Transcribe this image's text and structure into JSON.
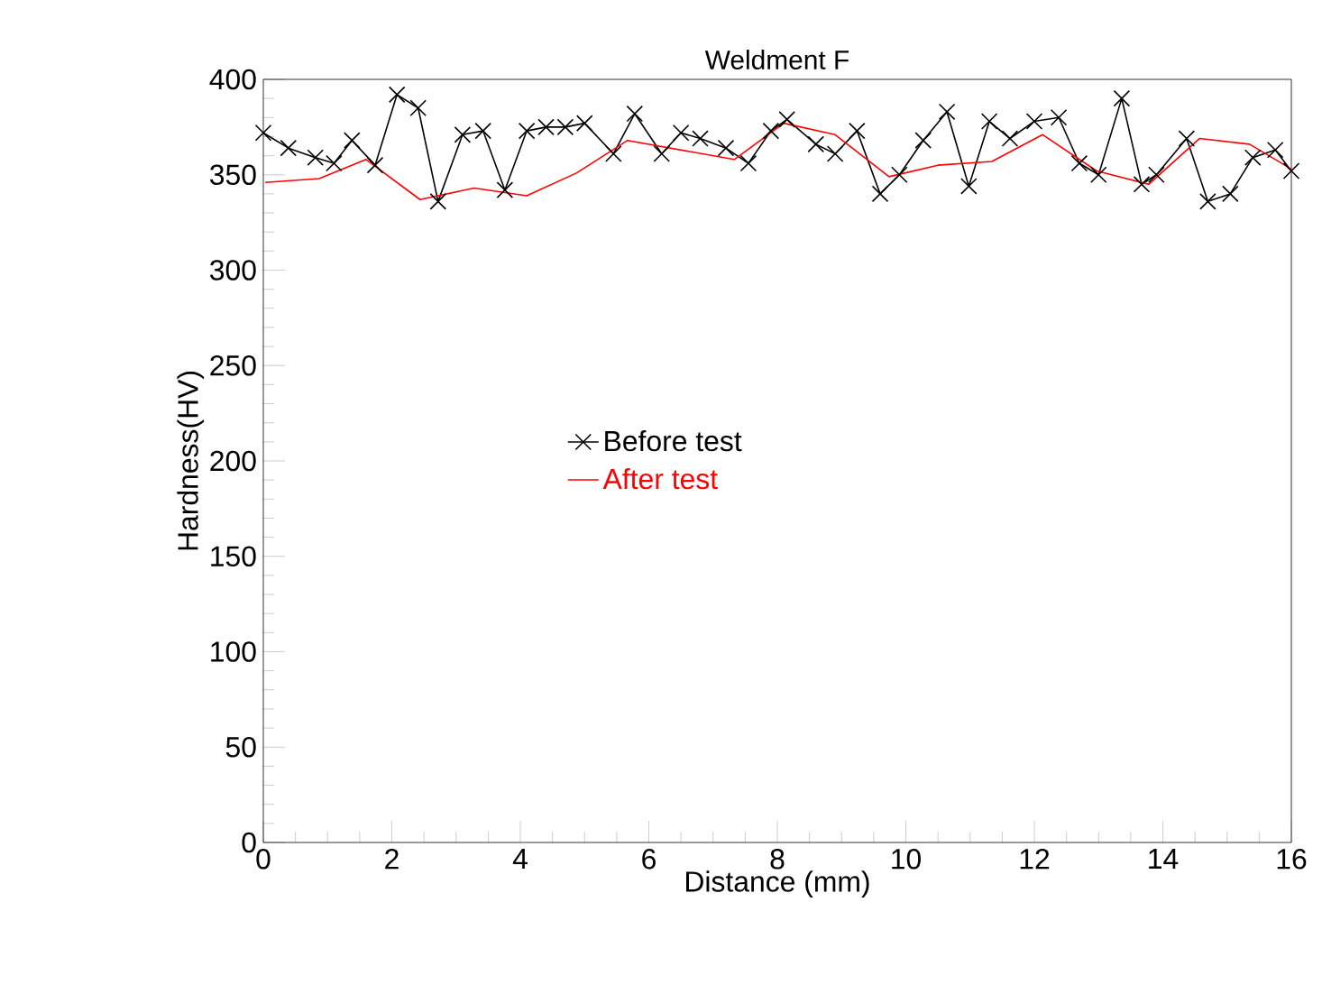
{
  "chart_data": {
    "type": "line",
    "title": "Weldment F",
    "xlabel": "Distance (mm)",
    "ylabel": "Hardness(HV)",
    "xlim": [
      0,
      16
    ],
    "xticks": [
      0,
      2,
      4,
      6,
      8,
      10,
      12,
      14,
      16
    ],
    "ylim": [
      0,
      400
    ],
    "yticks": [
      0,
      50,
      100,
      150,
      200,
      250,
      300,
      350,
      400
    ],
    "grid": false,
    "legend": "center",
    "series": [
      {
        "name": "Before test",
        "color": "#000000",
        "marker": "cross",
        "x": [
          0,
          0.39,
          0.81,
          1.1,
          1.38,
          1.74,
          2.08,
          2.41,
          2.72,
          3.1,
          3.42,
          3.76,
          4.1,
          4.4,
          4.7,
          5.0,
          5.45,
          5.78,
          6.2,
          6.5,
          6.8,
          7.2,
          7.55,
          7.9,
          8.15,
          8.6,
          8.9,
          9.24,
          9.6,
          9.9,
          10.27,
          10.64,
          10.98,
          11.3,
          11.62,
          12.0,
          12.38,
          12.7,
          13.0,
          13.36,
          13.67,
          13.9,
          14.37,
          14.7,
          15.05,
          15.4,
          15.75,
          16.0
        ],
        "values": [
          372,
          364,
          359,
          356,
          368,
          355,
          392,
          385,
          336,
          371,
          373,
          342,
          373,
          375,
          375,
          377,
          361,
          382,
          361,
          372,
          369,
          364,
          356,
          373,
          379,
          366,
          361,
          373,
          340,
          350,
          368,
          383,
          344,
          378,
          369,
          378,
          380,
          356,
          350,
          390,
          345,
          350,
          369,
          336,
          340,
          359,
          363,
          352
        ]
      },
      {
        "name": "After test",
        "color": "#ff0000",
        "marker": "none",
        "x": [
          0.03,
          0.87,
          1.6,
          2.44,
          3.28,
          4.1,
          4.88,
          5.67,
          7.33,
          8.1,
          8.9,
          9.74,
          10.5,
          11.34,
          12.13,
          12.97,
          13.78,
          14.57,
          15.35,
          16.0
        ],
        "values": [
          346,
          348,
          358,
          337,
          343,
          339,
          351,
          368,
          358,
          377,
          371,
          349,
          355,
          357,
          371,
          352,
          345,
          369,
          366,
          353
        ]
      }
    ]
  }
}
